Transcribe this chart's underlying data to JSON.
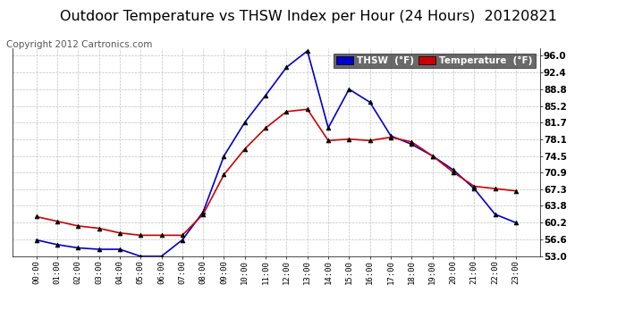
{
  "title": "Outdoor Temperature vs THSW Index per Hour (24 Hours)  20120821",
  "copyright": "Copyright 2012 Cartronics.com",
  "hours": [
    "00:00",
    "01:00",
    "02:00",
    "03:00",
    "04:00",
    "05:00",
    "06:00",
    "07:00",
    "08:00",
    "09:00",
    "10:00",
    "11:00",
    "12:00",
    "13:00",
    "14:00",
    "15:00",
    "16:00",
    "17:00",
    "18:00",
    "19:00",
    "20:00",
    "21:00",
    "22:00",
    "23:00"
  ],
  "thsw": [
    56.5,
    55.5,
    54.8,
    54.5,
    54.5,
    53.0,
    53.0,
    56.5,
    62.5,
    74.5,
    81.7,
    87.5,
    93.5,
    97.0,
    80.5,
    88.8,
    86.0,
    78.8,
    77.0,
    74.5,
    71.5,
    67.5,
    62.0,
    60.2
  ],
  "temperature": [
    61.5,
    60.5,
    59.5,
    59.0,
    58.0,
    57.5,
    57.5,
    57.5,
    62.0,
    70.5,
    76.0,
    80.5,
    84.0,
    84.5,
    77.8,
    78.1,
    77.8,
    78.5,
    77.5,
    74.5,
    71.0,
    68.0,
    67.5,
    67.0
  ],
  "thsw_color": "#0000cc",
  "temp_color": "#cc0000",
  "marker_color": "#000000",
  "background_color": "#ffffff",
  "grid_color": "#c0c0c0",
  "ylim": [
    53.0,
    97.5
  ],
  "yticks": [
    53.0,
    56.6,
    60.2,
    63.8,
    67.3,
    70.9,
    74.5,
    78.1,
    81.7,
    85.2,
    88.8,
    92.4,
    96.0
  ],
  "legend_thsw_bg": "#0000cc",
  "legend_temp_bg": "#cc0000",
  "title_fontsize": 11.5,
  "copyright_fontsize": 7.5
}
